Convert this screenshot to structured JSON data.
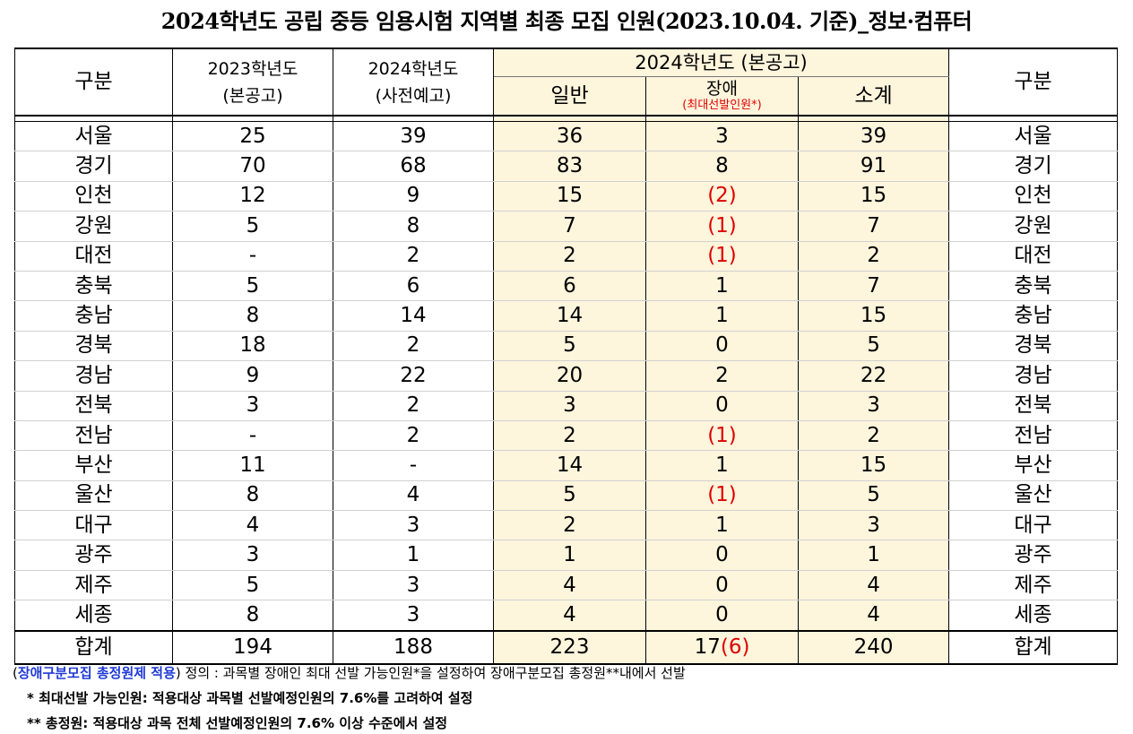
{
  "title": "2024학년도 공립 중등 임용시험 지역별 최종 모집 인원(2023.10.04. 기준)_정보·컴퓨터",
  "headers": {
    "region": "구분",
    "y2023_line1": "2023학년도",
    "y2023_line2": "(본공고)",
    "y2024pre_line1": "2024학년도",
    "y2024pre_line2": "(사전예고)",
    "y2024_group": "2024학년도 (본공고)",
    "general": "일반",
    "disabled": "장애",
    "disabled_sub": "(최대선발인원*)",
    "subtotal": "소계",
    "region_right": "구분"
  },
  "rows": [
    {
      "region": "서울",
      "y2023": "25",
      "pre2024": "39",
      "general": "36",
      "disabled": "3",
      "disabled_red": false,
      "subtotal": "39"
    },
    {
      "region": "경기",
      "y2023": "70",
      "pre2024": "68",
      "general": "83",
      "disabled": "8",
      "disabled_red": false,
      "subtotal": "91"
    },
    {
      "region": "인천",
      "y2023": "12",
      "pre2024": "9",
      "general": "15",
      "disabled": "(2)",
      "disabled_red": true,
      "subtotal": "15"
    },
    {
      "region": "강원",
      "y2023": "5",
      "pre2024": "8",
      "general": "7",
      "disabled": "(1)",
      "disabled_red": true,
      "subtotal": "7"
    },
    {
      "region": "대전",
      "y2023": "-",
      "pre2024": "2",
      "general": "2",
      "disabled": "(1)",
      "disabled_red": true,
      "subtotal": "2"
    },
    {
      "region": "충북",
      "y2023": "5",
      "pre2024": "6",
      "general": "6",
      "disabled": "1",
      "disabled_red": false,
      "subtotal": "7"
    },
    {
      "region": "충남",
      "y2023": "8",
      "pre2024": "14",
      "general": "14",
      "disabled": "1",
      "disabled_red": false,
      "subtotal": "15"
    },
    {
      "region": "경북",
      "y2023": "18",
      "pre2024": "2",
      "general": "5",
      "disabled": "0",
      "disabled_red": false,
      "subtotal": "5"
    },
    {
      "region": "경남",
      "y2023": "9",
      "pre2024": "22",
      "general": "20",
      "disabled": "2",
      "disabled_red": false,
      "subtotal": "22"
    },
    {
      "region": "전북",
      "y2023": "3",
      "pre2024": "2",
      "general": "3",
      "disabled": "0",
      "disabled_red": false,
      "subtotal": "3"
    },
    {
      "region": "전남",
      "y2023": "-",
      "pre2024": "2",
      "general": "2",
      "disabled": "(1)",
      "disabled_red": true,
      "subtotal": "2"
    },
    {
      "region": "부산",
      "y2023": "11",
      "pre2024": "-",
      "general": "14",
      "disabled": "1",
      "disabled_red": false,
      "subtotal": "15"
    },
    {
      "region": "울산",
      "y2023": "8",
      "pre2024": "4",
      "general": "5",
      "disabled": "(1)",
      "disabled_red": true,
      "subtotal": "5"
    },
    {
      "region": "대구",
      "y2023": "4",
      "pre2024": "3",
      "general": "2",
      "disabled": "1",
      "disabled_red": false,
      "subtotal": "3"
    },
    {
      "region": "광주",
      "y2023": "3",
      "pre2024": "1",
      "general": "1",
      "disabled": "0",
      "disabled_red": false,
      "subtotal": "1"
    },
    {
      "region": "제주",
      "y2023": "5",
      "pre2024": "3",
      "general": "4",
      "disabled": "0",
      "disabled_red": false,
      "subtotal": "4"
    },
    {
      "region": "세종",
      "y2023": "8",
      "pre2024": "3",
      "general": "4",
      "disabled": "0",
      "disabled_red": false,
      "subtotal": "4"
    }
  ],
  "total": {
    "region": "합계",
    "y2023": "194",
    "pre2024": "188",
    "general": "223",
    "disabled_base": "17",
    "disabled_paren": "(6)",
    "subtotal": "240"
  },
  "notes": {
    "note1_open": "(",
    "note1_highlight": "장애구분모집 총정원제 적용",
    "note1_rest": ") 정의 : 과목별 장애인 최대 선발 가능인원*을 설정하여 장애구분모집 총정원**내에서 선발",
    "note2": "* 최대선발 가능인원: 적용대상 과목별 선발예정인원의 7.6%를 고려하여 설정",
    "note3": "** 총정원: 적용대상 과목 전체 선발예정인원의 7.6% 이상 수준에서 설정"
  },
  "colors": {
    "highlight_bg": "#fdf5dc",
    "red_text": "#e00000",
    "blue_text": "#1f3ad6"
  }
}
